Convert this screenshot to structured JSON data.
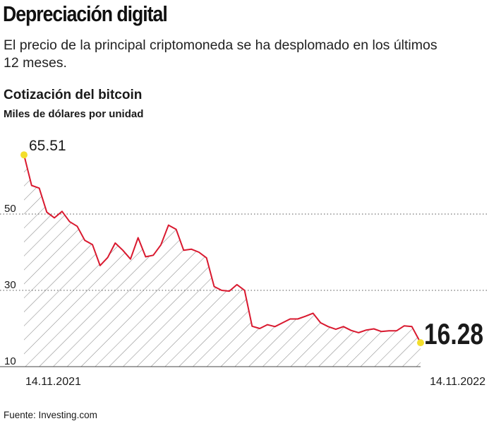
{
  "headline": "Depreciación digital",
  "deck": "El precio de la principal criptomoneda se ha desplomado en los últimos 12 meses.",
  "source": "Fuente: Investing.com",
  "colors": {
    "line": "#d9192f",
    "marker": "#f3de2c",
    "hatch": "#8a8a8a",
    "grid": "#555555",
    "text": "#1a1a1a"
  },
  "chart_data": {
    "type": "area",
    "title": "Cotización del bitcoin",
    "subtitle": "Miles de dólares por unidad",
    "xlabel": "",
    "ylabel": "",
    "ylim": [
      10,
      65.51
    ],
    "yticks": [
      10,
      30,
      50
    ],
    "grid": "horizontal dotted",
    "x_tick_labels": [
      "14.11.2021",
      "14.11.2022"
    ],
    "highlight_labels": {
      "start": "65.51",
      "end": "16.28"
    },
    "series": [
      {
        "x": [
          "2021-11-14",
          "2021-11-21",
          "2021-11-28",
          "2021-12-05",
          "2021-12-12",
          "2021-12-19",
          "2021-12-26",
          "2022-01-02",
          "2022-01-09",
          "2022-01-16",
          "2022-01-23",
          "2022-01-30",
          "2022-02-06",
          "2022-02-13",
          "2022-02-20",
          "2022-02-27",
          "2022-03-06",
          "2022-03-13",
          "2022-03-20",
          "2022-03-27",
          "2022-04-03",
          "2022-04-10",
          "2022-04-17",
          "2022-04-24",
          "2022-05-01",
          "2022-05-08",
          "2022-05-15",
          "2022-05-22",
          "2022-05-29",
          "2022-06-05",
          "2022-06-12",
          "2022-06-19",
          "2022-06-26",
          "2022-07-03",
          "2022-07-10",
          "2022-07-17",
          "2022-07-24",
          "2022-07-31",
          "2022-08-07",
          "2022-08-14",
          "2022-08-21",
          "2022-08-28",
          "2022-09-04",
          "2022-09-11",
          "2022-09-18",
          "2022-09-25",
          "2022-10-02",
          "2022-10-09",
          "2022-10-16",
          "2022-10-23",
          "2022-10-30",
          "2022-11-06",
          "2022-11-14"
        ],
        "values": [
          65.51,
          57.5,
          56.8,
          50.5,
          49.0,
          50.7,
          48.0,
          46.8,
          43.1,
          42.0,
          36.5,
          38.6,
          42.4,
          40.5,
          38.2,
          43.8,
          38.8,
          39.2,
          41.9,
          47.1,
          46.0,
          40.5,
          40.8,
          40.0,
          38.5,
          31.0,
          30.0,
          29.8,
          31.5,
          30.0,
          20.6,
          20.0,
          21.0,
          20.5,
          21.5,
          22.5,
          22.5,
          23.2,
          24.0,
          21.5,
          20.5,
          19.8,
          20.5,
          19.5,
          18.9,
          19.6,
          19.9,
          19.2,
          19.4,
          19.4,
          20.7,
          20.5,
          16.28
        ]
      }
    ]
  }
}
